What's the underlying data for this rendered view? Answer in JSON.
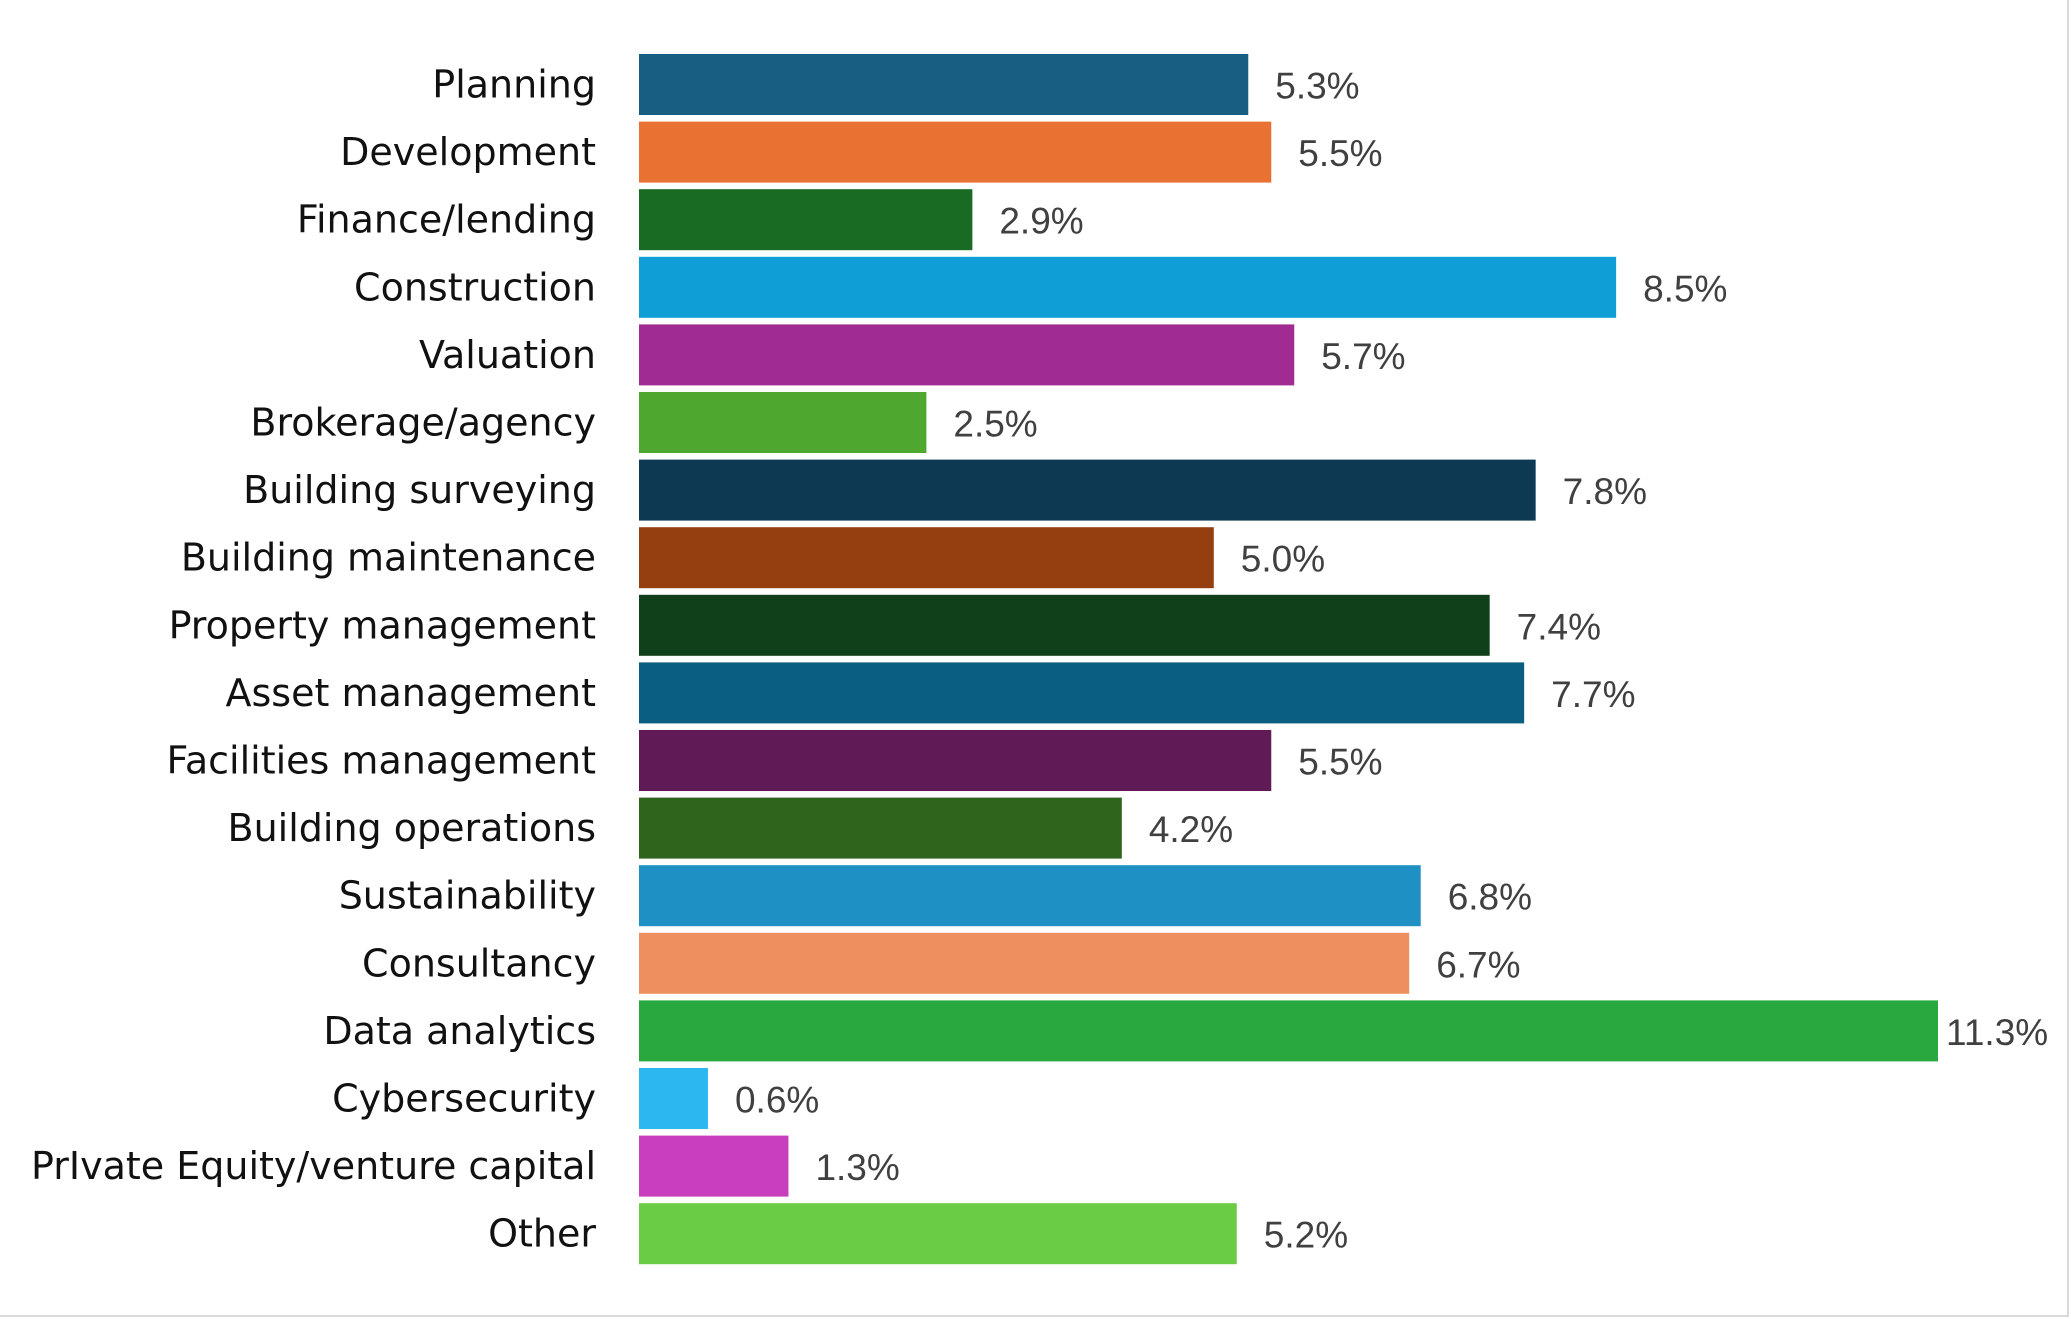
{
  "chart_data": {
    "type": "bar",
    "orientation": "horizontal",
    "title": "",
    "xlabel": "",
    "ylabel": "",
    "xlim": [
      0,
      11.3
    ],
    "grid": false,
    "value_suffix": "%",
    "categories": [
      "Planning",
      "Development",
      "Finance/lending",
      "Construction",
      "Valuation",
      "Brokerage/agency",
      "Building surveying",
      "Building maintenance",
      "Property management",
      "Asset management",
      "Facilities management",
      "Building operations",
      "Sustainability",
      "Consultancy",
      "Data analytics",
      "Cybersecurity",
      "PrIvate Equity/venture capital",
      "Other"
    ],
    "values": [
      5.3,
      5.5,
      2.9,
      8.5,
      5.7,
      2.5,
      7.8,
      5.0,
      7.4,
      7.7,
      5.5,
      4.2,
      6.8,
      6.7,
      11.3,
      0.6,
      1.3,
      5.2
    ],
    "labels": [
      "5.3%",
      "5.5%",
      "2.9%",
      "8.5%",
      "5.7%",
      "2.5%",
      "7.8%",
      "5.0%",
      "7.4%",
      "7.7%",
      "5.5%",
      "4.2%",
      "6.8%",
      "6.7%",
      "11.3%",
      "0.6%",
      "1.3%",
      "5.2%"
    ],
    "colors": [
      "#175e82",
      "#e97132",
      "#196b24",
      "#0f9ed5",
      "#a02b93",
      "#4ea72e",
      "#0d3a52",
      "#953e10",
      "#0f401a",
      "#0a5e82",
      "#601a55",
      "#2f641d",
      "#1f90c3",
      "#ed8f5f",
      "#28a83e",
      "#2db7f0",
      "#c93ebc",
      "#69cc44"
    ]
  }
}
